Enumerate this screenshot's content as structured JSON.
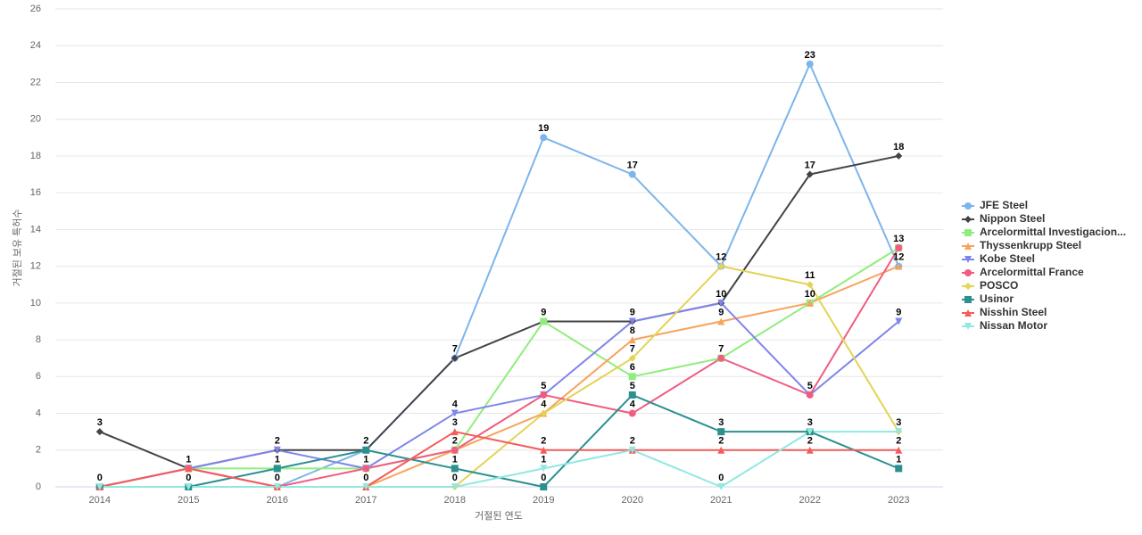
{
  "chart_data": {
    "type": "line",
    "x_label": "거절된 연도",
    "y_label": "거절된 보유 특허수",
    "categories": [
      "2014",
      "2015",
      "2016",
      "2017",
      "2018",
      "2019",
      "2020",
      "2021",
      "2022",
      "2023"
    ],
    "ylim": [
      0,
      26
    ],
    "yticks": [
      0,
      2,
      4,
      6,
      8,
      10,
      12,
      14,
      16,
      18,
      20,
      22,
      24,
      26
    ],
    "grid": true,
    "legend": "right",
    "series": [
      {
        "name": "JFE Steel",
        "color": "#7cb5ec",
        "values": [
          0,
          1,
          0,
          2,
          7,
          19,
          17,
          12,
          23,
          12
        ]
      },
      {
        "name": "Nippon Steel",
        "color": "#434348",
        "values": [
          3,
          1,
          2,
          2,
          7,
          9,
          9,
          10,
          17,
          18
        ]
      },
      {
        "name": "Arcelormittal Investigacion...",
        "color": "#90ed7d",
        "values": [
          0,
          1,
          1,
          1,
          2,
          9,
          6,
          7,
          10,
          13
        ]
      },
      {
        "name": "Thyssenkrupp Steel",
        "color": "#f7a35c",
        "values": [
          0,
          0,
          0,
          0,
          2,
          4,
          8,
          9,
          10,
          12
        ]
      },
      {
        "name": "Kobe Steel",
        "color": "#8085e9",
        "values": [
          0,
          1,
          2,
          1,
          4,
          5,
          9,
          10,
          5,
          9
        ]
      },
      {
        "name": "Arcelormittal France",
        "color": "#f15c80",
        "values": [
          0,
          1,
          0,
          1,
          2,
          5,
          4,
          7,
          5,
          13
        ]
      },
      {
        "name": "POSCO",
        "color": "#e4d354",
        "values": [
          0,
          0,
          0,
          0,
          0,
          4,
          7,
          12,
          11,
          3
        ]
      },
      {
        "name": "Usinor",
        "color": "#2b908f",
        "values": [
          0,
          0,
          1,
          2,
          1,
          0,
          5,
          3,
          3,
          1
        ]
      },
      {
        "name": "Nisshin Steel",
        "color": "#f45b5b",
        "values": [
          0,
          1,
          0,
          0,
          3,
          2,
          2,
          2,
          2,
          2
        ]
      },
      {
        "name": "Nissan Motor",
        "color": "#91e8e1",
        "values": [
          0,
          0,
          0,
          0,
          0,
          1,
          2,
          0,
          3,
          3
        ]
      }
    ]
  }
}
